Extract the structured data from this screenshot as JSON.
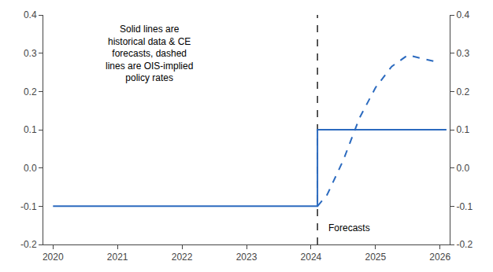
{
  "chart_data": {
    "type": "line",
    "series": [
      {
        "x": [
          2020.0,
          2024.1,
          2024.1,
          2026.1
        ],
        "values": [
          -0.1,
          -0.1,
          0.1,
          0.1
        ],
        "color": "#2b6abf",
        "line_style": "solid"
      },
      {
        "x": [
          2024.1,
          2024.25,
          2024.5,
          2024.75,
          2025.0,
          2025.25,
          2025.5,
          2025.75,
          2026.0
        ],
        "values": [
          -0.1,
          -0.07,
          0.02,
          0.13,
          0.21,
          0.265,
          0.295,
          0.285,
          0.275
        ],
        "color": "#2b6abf",
        "line_style": "dashed"
      }
    ],
    "vlines": [
      {
        "x": 2024.1,
        "color": "#000000",
        "line_style": "dashed"
      }
    ],
    "annotations": [
      {
        "text": "Solid lines are\nhistorical data & CE\nforecasts, dashed\nlines are OIS-implied\npolicy rates"
      },
      {
        "text": "Forecasts",
        "x": 2024.25,
        "y": -0.175
      }
    ],
    "xlim": [
      2019.85,
      2026.15
    ],
    "xticks": [
      2020,
      2021,
      2022,
      2023,
      2024,
      2025,
      2026
    ],
    "ylim": [
      -0.2,
      0.4
    ],
    "yticks": [
      -0.2,
      -0.1,
      {
        "value": 0.0,
        "label": "0.0"
      },
      0.1,
      0.2,
      0.3,
      0.4
    ],
    "y2lim": [
      -0.2,
      0.4
    ],
    "y2ticks": [
      -0.2,
      -0.1,
      {
        "value": 0.0,
        "label": "0.0"
      },
      0.1,
      0.2,
      0.3,
      0.4
    ],
    "grid": false
  }
}
